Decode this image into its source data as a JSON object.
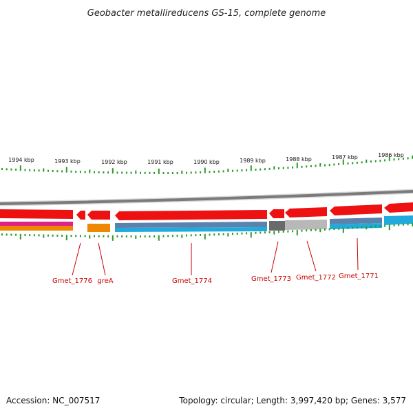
{
  "map_title": "Geobacter metallireducens GS-15, complete genome",
  "footer": {
    "accession": "Accession: NC_007517",
    "summary": "Topology: circular; Length: 3,997,420 bp; Genes: 3,577"
  },
  "colors": {
    "forward_gene": "#ee1111",
    "backbone": "#7a7a7a",
    "tick": "#2a9a2a",
    "gene_label": "#cc0000",
    "cds_blue": "#22aadd",
    "cds_steel": "#5a82ad",
    "cds_orange": "#ee8800",
    "cds_gray": "#6a6a6a",
    "cds_lightgray": "#b8b8b8",
    "cds_magenta": "#dd2288"
  },
  "scale_labels": [
    "1994 kbp",
    "1993 kbp",
    "1992 kbp",
    "1991 kbp",
    "1990 kbp",
    "1989 kbp",
    "1988 kbp",
    "1987 kbp",
    "1986 kbp"
  ],
  "genes": [
    "Gmet_1776",
    "greA",
    "Gmet_1774",
    "Gmet_1773",
    "Gmet_1772",
    "Gmet_1771"
  ]
}
